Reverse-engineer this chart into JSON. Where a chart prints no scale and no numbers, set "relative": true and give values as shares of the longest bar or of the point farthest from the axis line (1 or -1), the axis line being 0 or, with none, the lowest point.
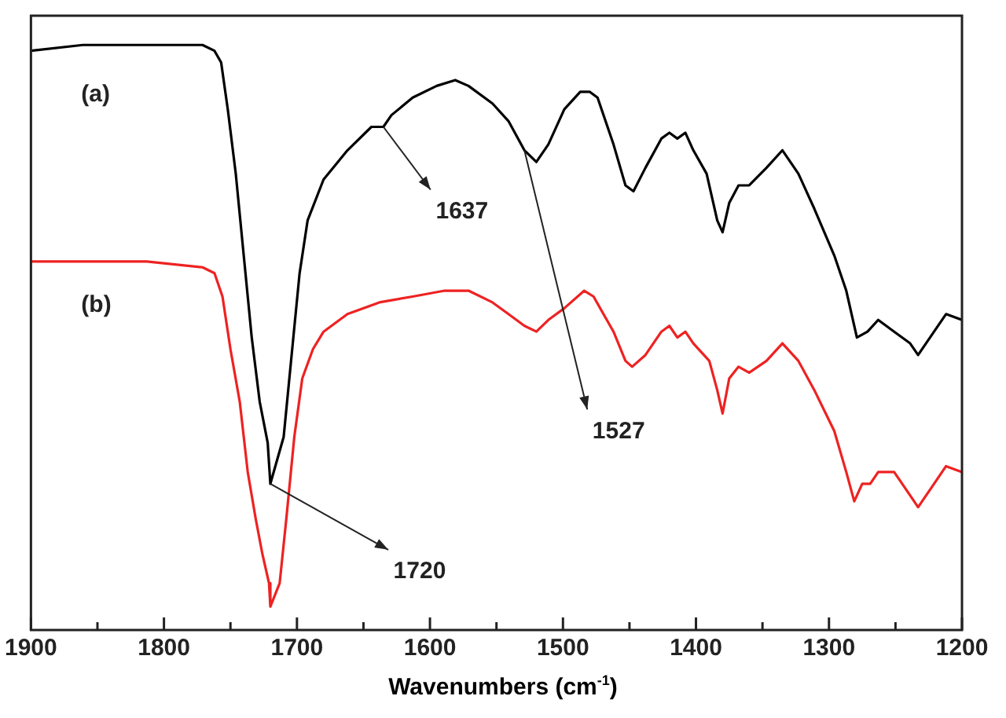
{
  "chart_data": {
    "type": "line",
    "xlabel": "Wavenumbers (cm$^{-1}$)",
    "relative": true,
    "xlim": [
      1900,
      1200
    ],
    "xticks": [
      1900,
      {
        "value": 1850,
        "label": null
      },
      1800,
      {
        "value": 1750,
        "label": null
      },
      1700,
      {
        "value": 1650,
        "label": null
      },
      1600,
      {
        "value": 1550,
        "label": null
      },
      1500,
      {
        "value": 1450,
        "label": null
      },
      1400,
      {
        "value": 1350,
        "label": null
      },
      1300,
      {
        "value": 1250,
        "label": null
      },
      1200
    ],
    "grid": false,
    "legend": false,
    "marker": "none",
    "line_style": "solid",
    "series": [
      {
        "name": "(a)",
        "color": "#000000",
        "x": [
          1900,
          1861,
          1813,
          1771,
          1762,
          1757,
          1752,
          1746,
          1740,
          1734,
          1728,
          1722,
          1720,
          1710,
          1704,
          1698,
          1692,
          1680,
          1662,
          1644,
          1635,
          1629,
          1613,
          1595,
          1581,
          1571,
          1553,
          1541,
          1529,
          1520,
          1511,
          1499,
          1487,
          1480,
          1474,
          1462,
          1453,
          1447,
          1438,
          1426,
          1420,
          1414,
          1408,
          1402,
          1392,
          1384,
          1380,
          1375,
          1368,
          1360,
          1347,
          1335,
          1323,
          1311,
          1296,
          1287,
          1279,
          1271,
          1263,
          1251,
          1239,
          1233,
          1221,
          1212,
          1200
        ],
        "values": [
          0.99,
          1.0,
          1.0,
          1.0,
          0.99,
          0.97,
          0.89,
          0.78,
          0.64,
          0.5,
          0.39,
          0.32,
          0.25,
          0.33,
          0.47,
          0.61,
          0.7,
          0.77,
          0.82,
          0.86,
          0.86,
          0.88,
          0.91,
          0.93,
          0.94,
          0.93,
          0.9,
          0.87,
          0.82,
          0.8,
          0.83,
          0.89,
          0.92,
          0.92,
          0.91,
          0.83,
          0.76,
          0.75,
          0.79,
          0.84,
          0.85,
          0.84,
          0.85,
          0.82,
          0.78,
          0.7,
          0.68,
          0.73,
          0.76,
          0.76,
          0.79,
          0.82,
          0.78,
          0.72,
          0.64,
          0.58,
          0.5,
          0.51,
          0.53,
          0.51,
          0.49,
          0.47,
          0.51,
          0.54,
          0.53
        ]
      },
      {
        "name": "(b)",
        "color": "#ee2222",
        "x": [
          1900,
          1861,
          1813,
          1771,
          1762,
          1756,
          1750,
          1743,
          1737,
          1731,
          1726,
          1721,
          1720,
          1713,
          1708,
          1702,
          1696,
          1688,
          1680,
          1662,
          1638,
          1613,
          1589,
          1571,
          1553,
          1541,
          1529,
          1520,
          1511,
          1499,
          1484,
          1477,
          1462,
          1453,
          1448,
          1438,
          1426,
          1420,
          1414,
          1408,
          1402,
          1390,
          1384,
          1380,
          1375,
          1368,
          1360,
          1347,
          1335,
          1323,
          1311,
          1296,
          1287,
          1281,
          1275,
          1269,
          1263,
          1251,
          1239,
          1233,
          1221,
          1212,
          1200
        ],
        "values": [
          0.63,
          0.63,
          0.63,
          0.62,
          0.61,
          0.57,
          0.48,
          0.39,
          0.27,
          0.19,
          0.13,
          0.08,
          0.04,
          0.08,
          0.19,
          0.33,
          0.43,
          0.48,
          0.51,
          0.54,
          0.56,
          0.57,
          0.58,
          0.58,
          0.56,
          0.54,
          0.52,
          0.51,
          0.53,
          0.55,
          0.58,
          0.57,
          0.51,
          0.46,
          0.45,
          0.47,
          0.51,
          0.52,
          0.5,
          0.51,
          0.49,
          0.46,
          0.41,
          0.37,
          0.43,
          0.45,
          0.44,
          0.46,
          0.49,
          0.46,
          0.41,
          0.34,
          0.27,
          0.22,
          0.25,
          0.25,
          0.27,
          0.27,
          0.23,
          0.21,
          0.25,
          0.28,
          0.27
        ]
      }
    ],
    "annotations": [
      {
        "text": "1637",
        "x": 1635,
        "y": 0.86
      },
      {
        "text": "1527",
        "x": 1529,
        "y": 0.82
      },
      {
        "text": "1720",
        "x": 1720,
        "y": 0.25
      }
    ]
  }
}
